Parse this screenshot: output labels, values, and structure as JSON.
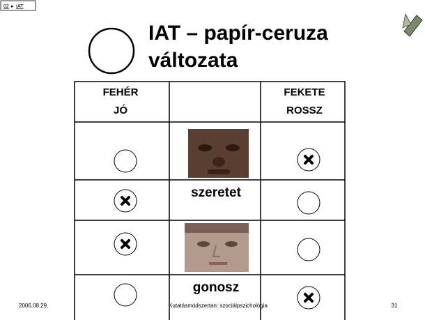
{
  "breadcrumb": [
    "02",
    "IAT"
  ],
  "title": [
    "IAT – papír-ceruza",
    "változata"
  ],
  "table": {
    "headers": [
      [
        "FEHÉR",
        "JÓ"
      ],
      [
        "FEKETE",
        "ROSSZ"
      ]
    ],
    "words": [
      "szeretet",
      "gonosz"
    ]
  },
  "footer": {
    "date": "2006.08.29.",
    "course": "Kutatásmódszertan: szociálpszichológia",
    "page": "31"
  }
}
